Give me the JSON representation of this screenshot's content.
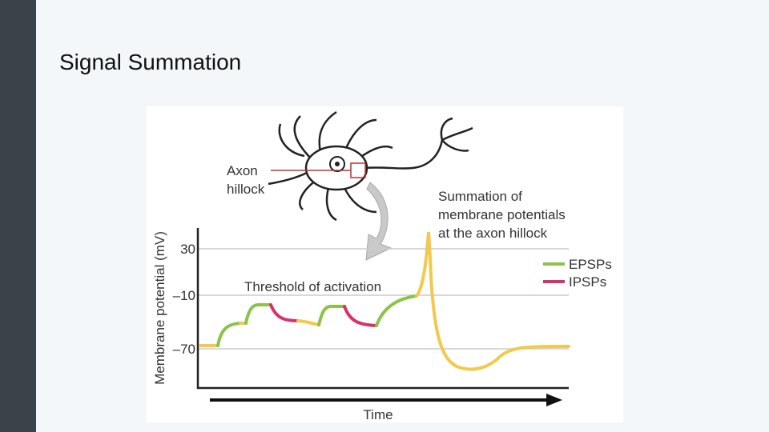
{
  "slide": {
    "title": "Signal Summation"
  },
  "figure": {
    "axon_label": [
      "Axon",
      "hillock"
    ],
    "summation_label": [
      "Summation of",
      "membrane potentials",
      "at the axon hillock"
    ],
    "y_axis_label": "Membrane potential (mV)",
    "y_tick_labels": [
      "30",
      "–10",
      "–70"
    ],
    "threshold_label": "Threshold of activation",
    "x_axis_label": "Time",
    "legend": [
      "EPSPs",
      "IPSPs"
    ]
  }
}
